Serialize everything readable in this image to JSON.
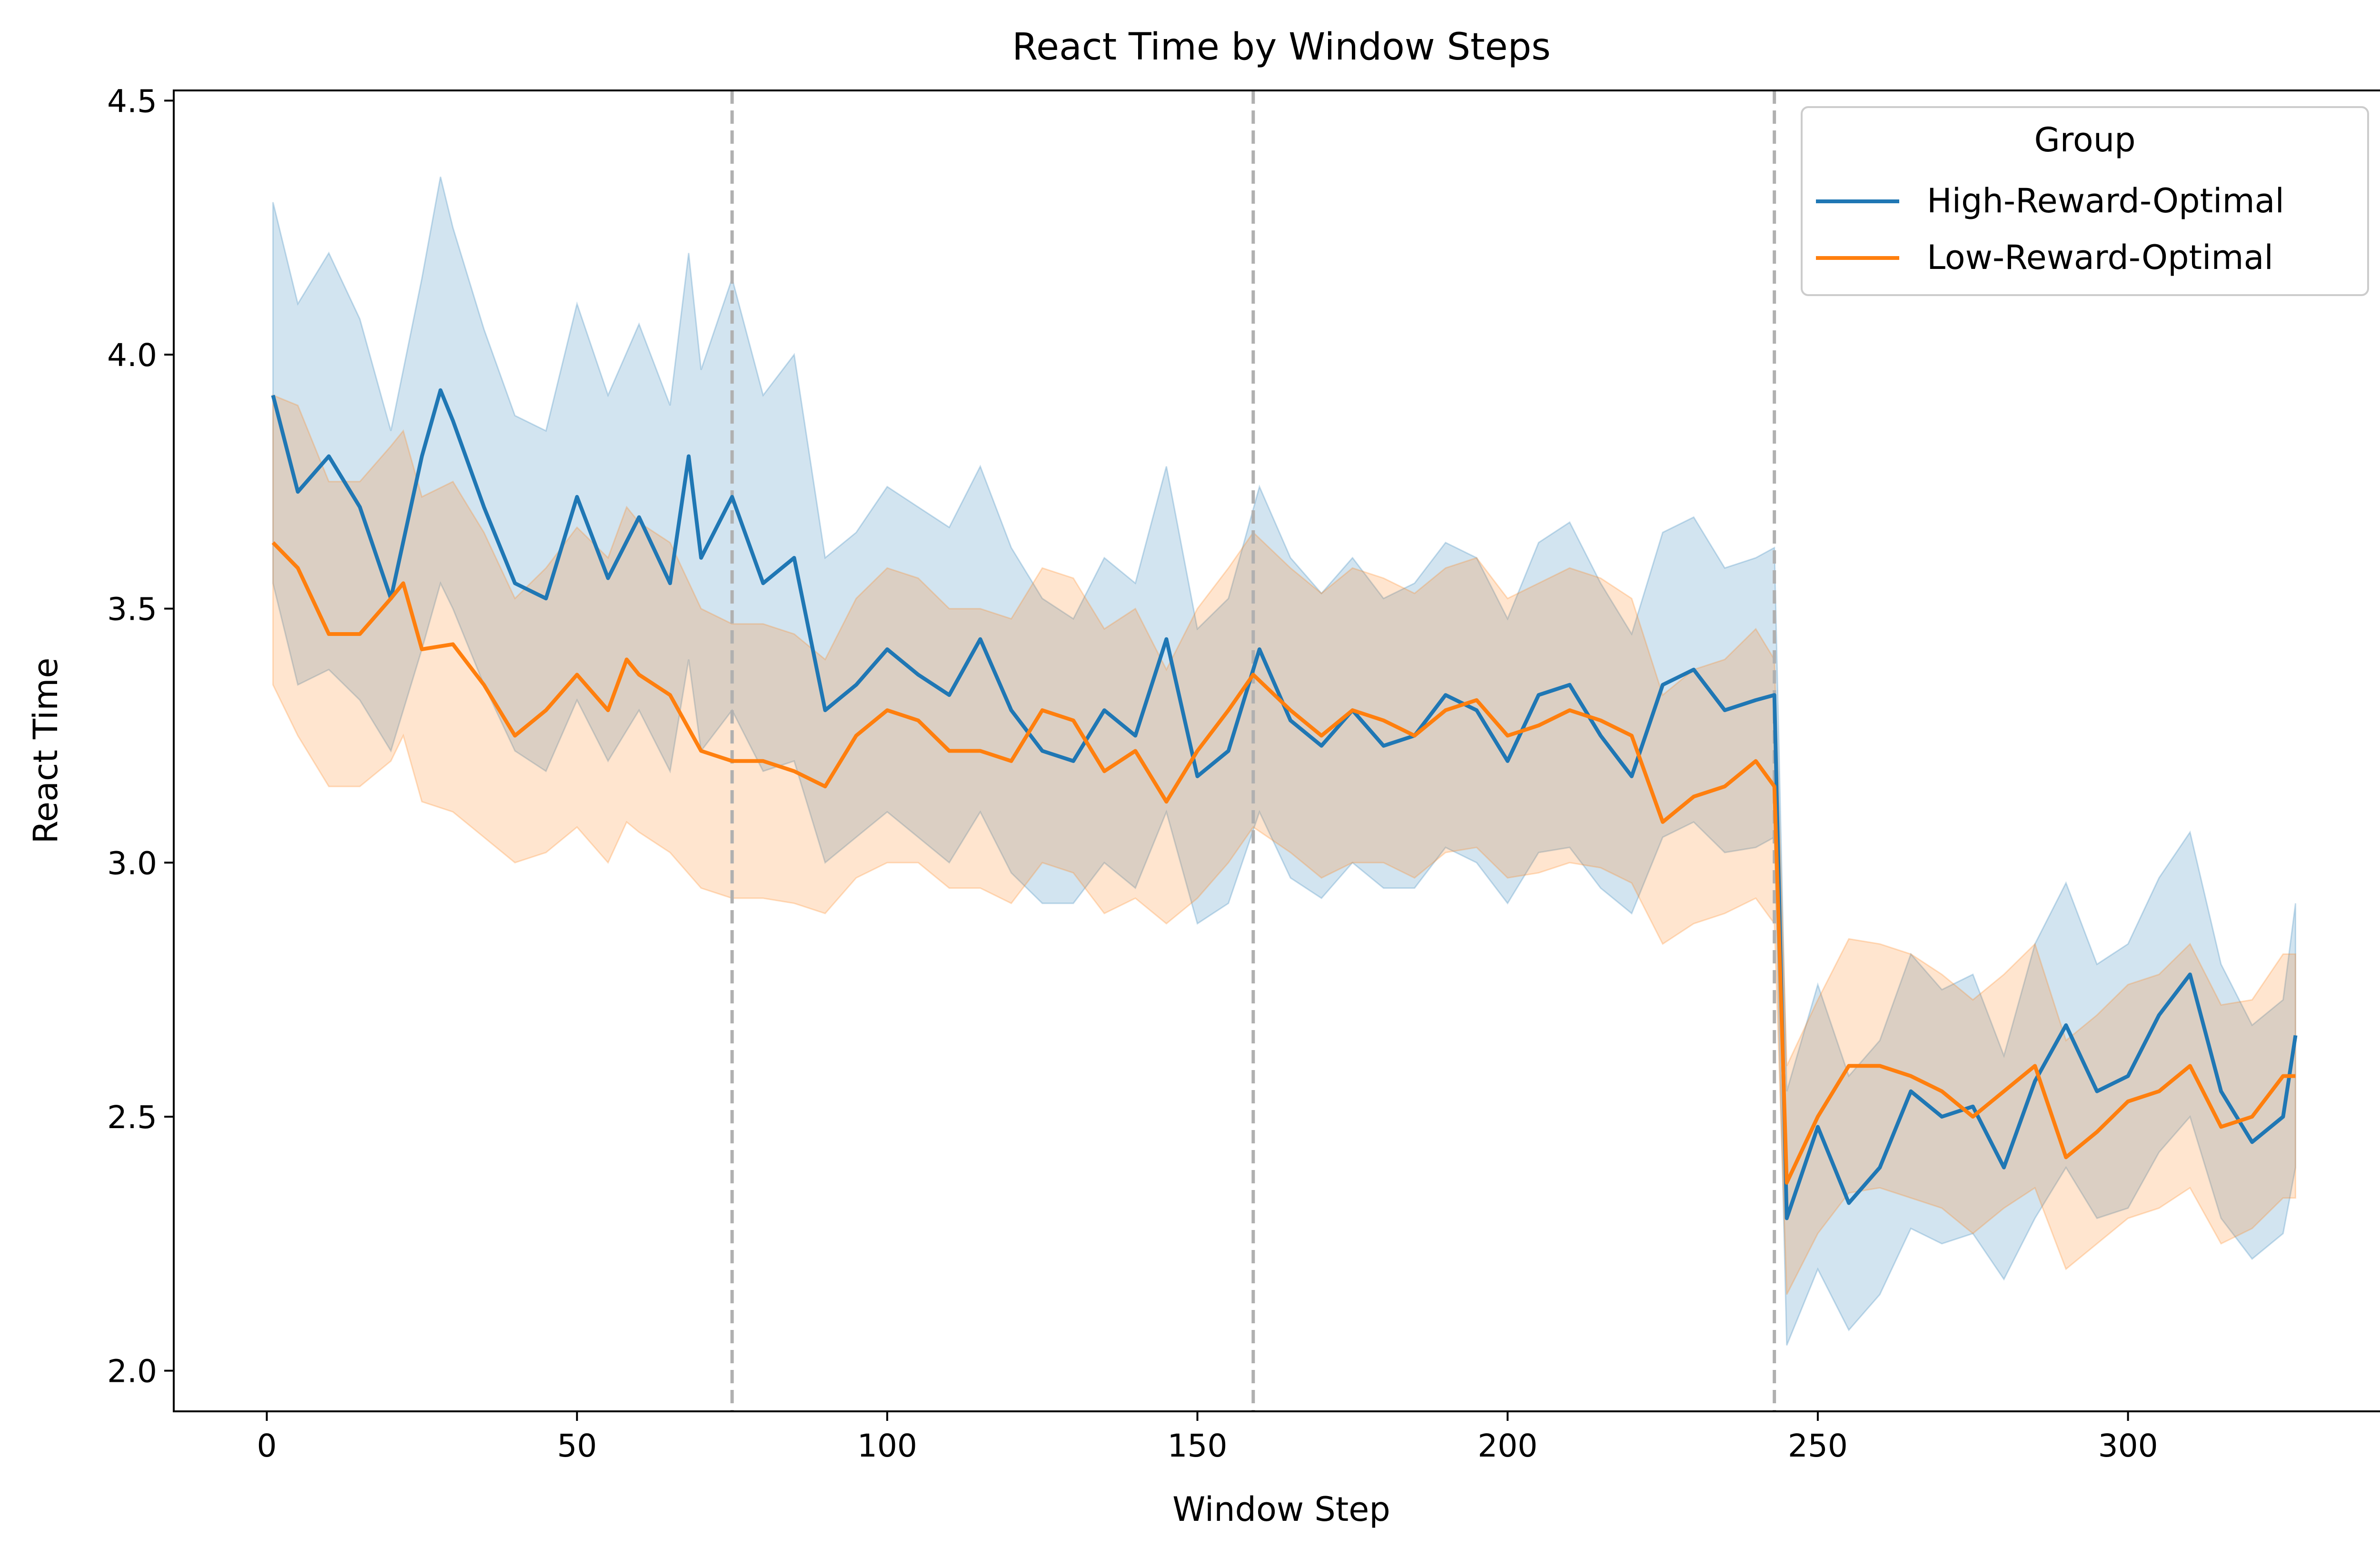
{
  "chart_data": {
    "type": "line",
    "title": "React Time by Window Steps",
    "xlabel": "Window Step",
    "ylabel": "React Time",
    "xlim": [
      -15,
      342
    ],
    "ylim": [
      1.92,
      4.52
    ],
    "xticks": [
      0,
      50,
      100,
      150,
      200,
      250,
      300
    ],
    "yticks": [
      2.0,
      2.5,
      3.0,
      3.5,
      4.0,
      4.5
    ],
    "xtick_labels": [
      "0",
      "50",
      "100",
      "150",
      "200",
      "250",
      "300"
    ],
    "ytick_labels": [
      "2.0",
      "2.5",
      "3.0",
      "3.5",
      "4.0",
      "4.5"
    ],
    "vlines": [
      75,
      159,
      243
    ],
    "grid": false,
    "legend": {
      "title": "Group",
      "position": "top-right"
    },
    "series": [
      {
        "name": "High-Reward-Optimal",
        "color": "#1f77b4",
        "x": [
          1,
          5,
          10,
          15,
          20,
          25,
          28,
          30,
          35,
          40,
          45,
          50,
          55,
          60,
          65,
          68,
          70,
          75,
          80,
          85,
          90,
          95,
          100,
          105,
          110,
          115,
          120,
          125,
          130,
          135,
          140,
          145,
          150,
          155,
          160,
          165,
          170,
          175,
          180,
          185,
          190,
          195,
          200,
          205,
          210,
          215,
          220,
          225,
          230,
          235,
          240,
          243,
          245,
          250,
          255,
          260,
          265,
          270,
          275,
          280,
          285,
          290,
          295,
          300,
          305,
          310,
          315,
          320,
          325,
          327
        ],
        "y": [
          3.92,
          3.73,
          3.8,
          3.7,
          3.52,
          3.8,
          3.93,
          3.87,
          3.7,
          3.55,
          3.52,
          3.72,
          3.56,
          3.68,
          3.55,
          3.8,
          3.6,
          3.72,
          3.55,
          3.6,
          3.3,
          3.35,
          3.42,
          3.37,
          3.33,
          3.44,
          3.3,
          3.22,
          3.2,
          3.3,
          3.25,
          3.44,
          3.17,
          3.22,
          3.42,
          3.28,
          3.23,
          3.3,
          3.23,
          3.25,
          3.33,
          3.3,
          3.2,
          3.33,
          3.35,
          3.25,
          3.17,
          3.35,
          3.38,
          3.3,
          3.32,
          3.33,
          2.3,
          2.48,
          2.33,
          2.4,
          2.55,
          2.5,
          2.52,
          2.4,
          2.57,
          2.68,
          2.55,
          2.58,
          2.7,
          2.78,
          2.55,
          2.45,
          2.5,
          2.66
        ],
        "lower": [
          3.55,
          3.35,
          3.38,
          3.32,
          3.22,
          3.42,
          3.55,
          3.5,
          3.35,
          3.22,
          3.18,
          3.32,
          3.2,
          3.3,
          3.18,
          3.4,
          3.22,
          3.3,
          3.18,
          3.2,
          3.0,
          3.05,
          3.1,
          3.05,
          3.0,
          3.1,
          2.98,
          2.92,
          2.92,
          3.0,
          2.95,
          3.1,
          2.88,
          2.92,
          3.1,
          2.97,
          2.93,
          3.0,
          2.95,
          2.95,
          3.03,
          3.0,
          2.92,
          3.02,
          3.03,
          2.95,
          2.9,
          3.05,
          3.08,
          3.02,
          3.03,
          3.05,
          2.05,
          2.2,
          2.08,
          2.15,
          2.28,
          2.25,
          2.27,
          2.18,
          2.3,
          2.4,
          2.3,
          2.32,
          2.43,
          2.5,
          2.3,
          2.22,
          2.27,
          2.4
        ],
        "upper": [
          4.3,
          4.1,
          4.2,
          4.07,
          3.85,
          4.15,
          4.35,
          4.25,
          4.05,
          3.88,
          3.85,
          4.1,
          3.92,
          4.06,
          3.9,
          4.2,
          3.97,
          4.15,
          3.92,
          4.0,
          3.6,
          3.65,
          3.74,
          3.7,
          3.66,
          3.78,
          3.62,
          3.52,
          3.48,
          3.6,
          3.55,
          3.78,
          3.46,
          3.52,
          3.74,
          3.6,
          3.53,
          3.6,
          3.52,
          3.55,
          3.63,
          3.6,
          3.48,
          3.63,
          3.67,
          3.55,
          3.45,
          3.65,
          3.68,
          3.58,
          3.6,
          3.62,
          2.55,
          2.76,
          2.58,
          2.65,
          2.82,
          2.75,
          2.78,
          2.62,
          2.84,
          2.96,
          2.8,
          2.84,
          2.97,
          3.06,
          2.8,
          2.68,
          2.73,
          2.92
        ]
      },
      {
        "name": "Low-Reward-Optimal",
        "color": "#ff7f0e",
        "x": [
          1,
          5,
          10,
          15,
          20,
          22,
          25,
          30,
          35,
          40,
          45,
          50,
          55,
          58,
          60,
          65,
          70,
          75,
          80,
          85,
          90,
          95,
          100,
          105,
          110,
          115,
          120,
          125,
          130,
          135,
          140,
          145,
          150,
          155,
          159,
          165,
          170,
          175,
          180,
          185,
          190,
          195,
          200,
          205,
          210,
          215,
          220,
          225,
          230,
          235,
          240,
          243,
          245,
          250,
          255,
          260,
          265,
          270,
          275,
          280,
          285,
          290,
          295,
          300,
          305,
          310,
          315,
          320,
          325,
          327
        ],
        "y": [
          3.63,
          3.58,
          3.45,
          3.45,
          3.52,
          3.55,
          3.42,
          3.43,
          3.35,
          3.25,
          3.3,
          3.37,
          3.3,
          3.4,
          3.37,
          3.33,
          3.22,
          3.2,
          3.2,
          3.18,
          3.15,
          3.25,
          3.3,
          3.28,
          3.22,
          3.22,
          3.2,
          3.3,
          3.28,
          3.18,
          3.22,
          3.12,
          3.22,
          3.3,
          3.37,
          3.3,
          3.25,
          3.3,
          3.28,
          3.25,
          3.3,
          3.32,
          3.25,
          3.27,
          3.3,
          3.28,
          3.25,
          3.08,
          3.13,
          3.15,
          3.2,
          3.15,
          2.37,
          2.5,
          2.6,
          2.6,
          2.58,
          2.55,
          2.5,
          2.55,
          2.6,
          2.42,
          2.47,
          2.53,
          2.55,
          2.6,
          2.48,
          2.5,
          2.58,
          2.58
        ],
        "lower": [
          3.35,
          3.25,
          3.15,
          3.15,
          3.2,
          3.25,
          3.12,
          3.1,
          3.05,
          3.0,
          3.02,
          3.07,
          3.0,
          3.08,
          3.06,
          3.02,
          2.95,
          2.93,
          2.93,
          2.92,
          2.9,
          2.97,
          3.0,
          3.0,
          2.95,
          2.95,
          2.92,
          3.0,
          2.98,
          2.9,
          2.93,
          2.88,
          2.93,
          3.0,
          3.07,
          3.02,
          2.97,
          3.0,
          3.0,
          2.97,
          3.02,
          3.03,
          2.97,
          2.98,
          3.0,
          2.99,
          2.96,
          2.84,
          2.88,
          2.9,
          2.93,
          2.88,
          2.15,
          2.27,
          2.35,
          2.36,
          2.34,
          2.32,
          2.27,
          2.32,
          2.36,
          2.2,
          2.25,
          2.3,
          2.32,
          2.36,
          2.25,
          2.28,
          2.34,
          2.34
        ],
        "upper": [
          3.92,
          3.9,
          3.75,
          3.75,
          3.82,
          3.85,
          3.72,
          3.75,
          3.65,
          3.52,
          3.58,
          3.66,
          3.6,
          3.7,
          3.67,
          3.63,
          3.5,
          3.47,
          3.47,
          3.45,
          3.4,
          3.52,
          3.58,
          3.56,
          3.5,
          3.5,
          3.48,
          3.58,
          3.56,
          3.46,
          3.5,
          3.38,
          3.5,
          3.58,
          3.65,
          3.58,
          3.53,
          3.58,
          3.56,
          3.53,
          3.58,
          3.6,
          3.52,
          3.55,
          3.58,
          3.56,
          3.52,
          3.33,
          3.38,
          3.4,
          3.46,
          3.4,
          2.6,
          2.73,
          2.85,
          2.84,
          2.82,
          2.78,
          2.73,
          2.78,
          2.84,
          2.65,
          2.7,
          2.76,
          2.78,
          2.84,
          2.72,
          2.73,
          2.82,
          2.82
        ]
      }
    ]
  }
}
